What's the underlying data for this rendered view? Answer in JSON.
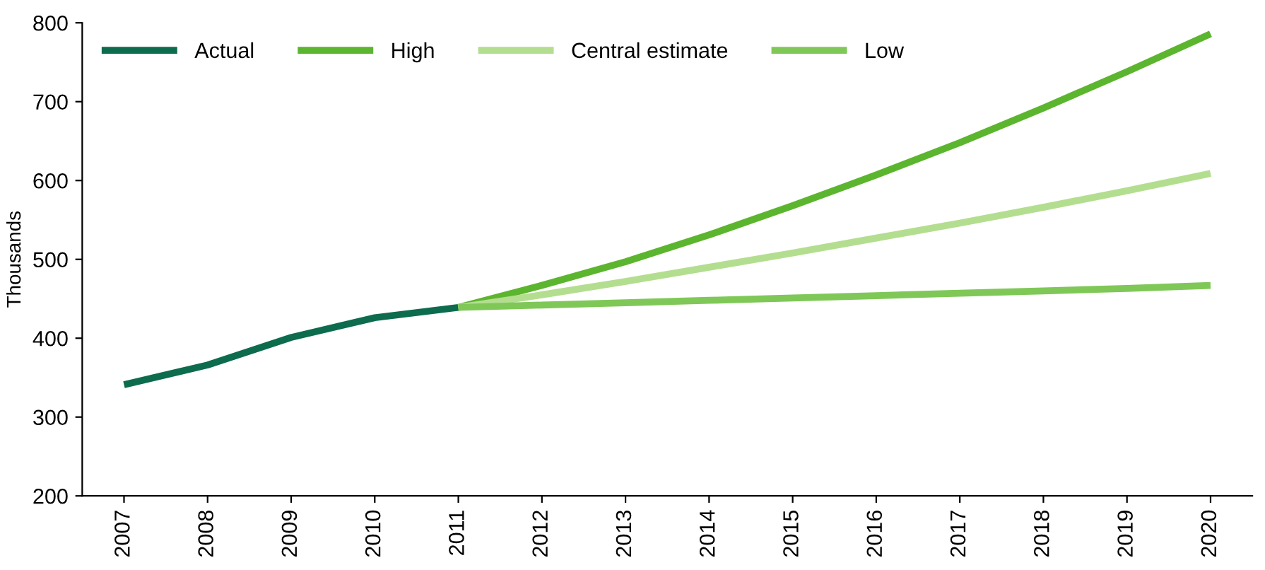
{
  "chart_data": {
    "type": "line",
    "ylabel": "Thousands",
    "categories": [
      "2007",
      "2008",
      "2009",
      "2010",
      "2011",
      "2012",
      "2013",
      "2014",
      "2015",
      "2016",
      "2017",
      "2018",
      "2019",
      "2020"
    ],
    "series": [
      {
        "name": "Actual",
        "color": "#0d6b4e",
        "values": [
          341,
          366,
          401,
          426,
          439,
          null,
          null,
          null,
          null,
          null,
          null,
          null,
          null,
          null
        ]
      },
      {
        "name": "High",
        "color": "#5cb52e",
        "values": [
          null,
          null,
          null,
          null,
          439,
          467,
          497,
          531,
          568,
          607,
          648,
          692,
          738,
          786
        ]
      },
      {
        "name": "Central estimate",
        "color": "#b3de8f",
        "values": [
          null,
          null,
          null,
          null,
          439,
          455,
          472,
          490,
          508,
          527,
          546,
          566,
          587,
          609
        ]
      },
      {
        "name": "Low",
        "color": "#7fc858",
        "values": [
          null,
          null,
          null,
          null,
          439,
          442,
          445,
          448,
          451,
          454,
          457,
          460,
          463,
          467
        ]
      }
    ],
    "ylim": [
      200,
      800
    ],
    "yticks": [
      200,
      300,
      400,
      500,
      600,
      700,
      800
    ],
    "grid": false,
    "legend": "top left",
    "marker": "none",
    "line_style": "solid"
  }
}
